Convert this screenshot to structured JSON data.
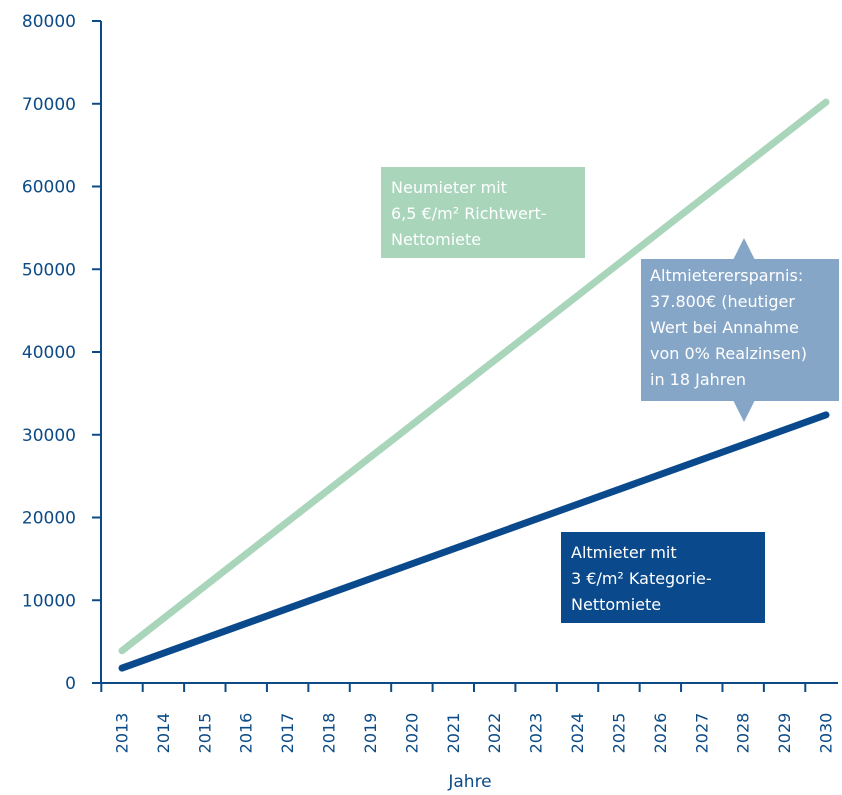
{
  "chart_data": {
    "type": "line",
    "title": "",
    "xlabel": "Jahre",
    "ylabel": "",
    "x_start": 2013,
    "x_end": 2030,
    "x": [
      2013,
      2014,
      2015,
      2016,
      2017,
      2018,
      2019,
      2020,
      2021,
      2022,
      2023,
      2024,
      2025,
      2026,
      2027,
      2028,
      2029,
      2030
    ],
    "ylim": [
      0,
      80000
    ],
    "yticks": [
      0,
      10000,
      20000,
      30000,
      40000,
      50000,
      60000,
      70000,
      80000
    ],
    "ytick_labels": [
      "0",
      "10000",
      "20000",
      "30000",
      "40000",
      "50000",
      "60000",
      "70000",
      "80000"
    ],
    "series": [
      {
        "color": "#a9d5bb",
        "start_value": 3900,
        "end_value": 70200
      },
      {
        "color": "#0a4a8c",
        "start_value": 1800,
        "end_value": 32400
      }
    ],
    "annotations": {
      "new_tenant": [
        "Neumieter mit",
        "6,5 €/m² Richtwert-",
        "Nettomiete"
      ],
      "old_tenant": [
        "Altmieter mit",
        "3 €/m² Kategorie-",
        "Nettomiete"
      ],
      "savings": [
        "Altmieterersparnis:",
        "37.800€ (heutiger",
        "Wert bei Annahme",
        "von 0% Realzinsen)",
        "in 18 Jahren"
      ]
    },
    "colors": {
      "axis": "#0c4b86",
      "savings_box": "#86a6c7"
    },
    "grid": false,
    "legend": "none"
  }
}
